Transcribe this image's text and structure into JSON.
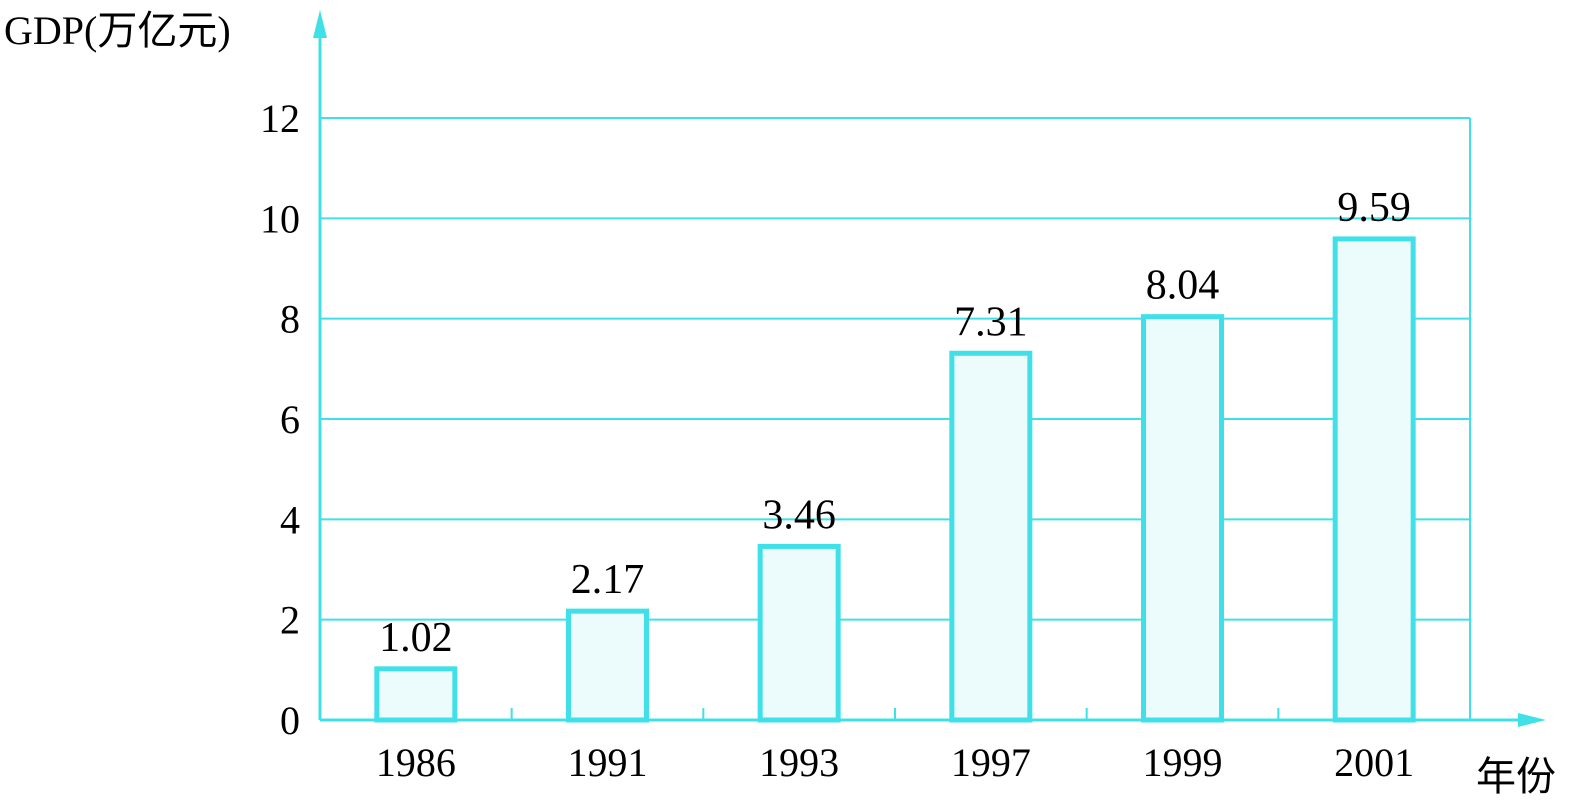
{
  "chart_data": {
    "type": "bar",
    "ylabel": "GDP(万亿元)",
    "xlabel": "年份",
    "categories": [
      "1986",
      "1991",
      "1993",
      "1997",
      "1999",
      "2001"
    ],
    "values": [
      1.02,
      2.17,
      3.46,
      7.31,
      8.04,
      9.59
    ],
    "value_labels": [
      "1.02",
      "2.17",
      "3.46",
      "7.31",
      "8.04",
      "9.59"
    ],
    "yticks": [
      "0",
      "2",
      "4",
      "6",
      "8",
      "10",
      "12"
    ],
    "ylim": [
      0,
      12
    ],
    "grid": true,
    "colors": {
      "axis": "#3fe0e8",
      "bar_fill": "#ecfcfd",
      "bar_stroke": "#3fe0e8",
      "text": "#000000"
    }
  }
}
